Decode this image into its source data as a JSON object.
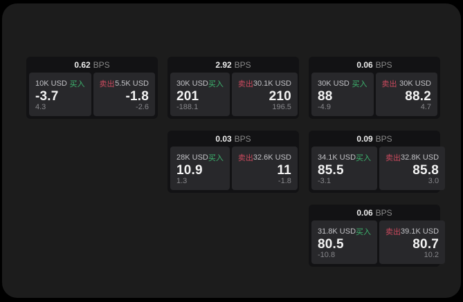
{
  "labels": {
    "bps_unit": "BPS",
    "buy": "买入",
    "sell": "卖出"
  },
  "colors": {
    "outer_bg": "#000000",
    "panel_bg": "#1c1c1c",
    "card_bg": "#121214",
    "subcard_bg": "#28282b",
    "buy": "#3db56f",
    "sell": "#cc4a5e"
  },
  "cards": [
    {
      "bps": "0.62",
      "buy": {
        "amount": "10K USD",
        "price": "-3.7",
        "delta": "4.3"
      },
      "sell": {
        "amount": "5.5K USD",
        "price": "-1.8",
        "delta": "-2.6"
      }
    },
    {
      "bps": "2.92",
      "buy": {
        "amount": "30K USD",
        "price": "201",
        "delta": "-188.1"
      },
      "sell": {
        "amount": "30.1K USD",
        "price": "210",
        "delta": "196.5"
      }
    },
    {
      "bps": "0.06",
      "buy": {
        "amount": "30K USD",
        "price": "88",
        "delta": "-4.9"
      },
      "sell": {
        "amount": "30K USD",
        "price": "88.2",
        "delta": "4.7"
      }
    },
    {
      "bps": "0.03",
      "buy": {
        "amount": "28K USD",
        "price": "10.9",
        "delta": "1.3"
      },
      "sell": {
        "amount": "32.6K USD",
        "price": "11",
        "delta": "-1.8"
      }
    },
    {
      "bps": "0.09",
      "buy": {
        "amount": "34.1K USD",
        "price": "85.5",
        "delta": "-3.1"
      },
      "sell": {
        "amount": "32.8K USD",
        "price": "85.8",
        "delta": "3.0"
      }
    },
    {
      "bps": "0.06",
      "buy": {
        "amount": "31.8K USD",
        "price": "80.5",
        "delta": "-10.8"
      },
      "sell": {
        "amount": "39.1K USD",
        "price": "80.7",
        "delta": "10.2"
      }
    }
  ]
}
